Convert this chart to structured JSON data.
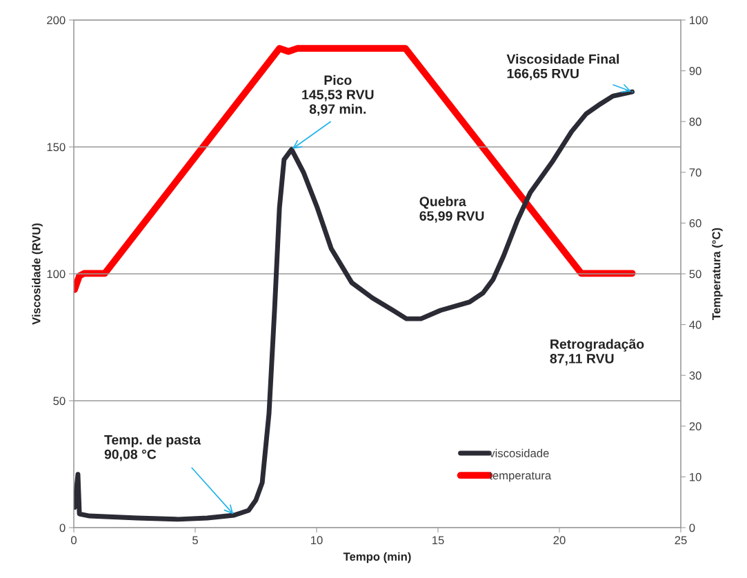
{
  "chart_data": {
    "type": "line",
    "xlabel": "Tempo (min)",
    "ylabel": "Viscosidade (RVU)",
    "y2label": "Temperatura (°C)",
    "series": [
      {
        "name": "viscosidade",
        "color": "#2b2b35",
        "x": [
          0.03,
          0.17,
          0.23,
          0.65,
          2.6,
          4.3,
          5.5,
          6.6,
          7.2,
          7.5,
          7.76,
          8.04,
          8.27,
          8.47,
          8.66,
          8.97,
          9.46,
          10.03,
          10.6,
          11.45,
          12.3,
          13.15,
          13.7,
          14.3,
          15.1,
          16.3,
          16.85,
          17.27,
          17.7,
          18.27,
          18.8,
          19.7,
          20.5,
          21.1,
          21.7,
          22.2,
          23.0
        ],
        "values": [
          8,
          21,
          5.4,
          4.6,
          3.8,
          3.3,
          3.8,
          4.9,
          6.8,
          10.9,
          17.7,
          45,
          86,
          126,
          145,
          149,
          140,
          126,
          110,
          96.5,
          90.5,
          85.6,
          82.3,
          82.3,
          85.6,
          88.9,
          92.4,
          97.8,
          107,
          121,
          132,
          144,
          156,
          163,
          167,
          170,
          171.7
        ]
      },
      {
        "name": "temperatura",
        "color": "#ff0000",
        "axis": "y2",
        "x": [
          0.03,
          0.23,
          0.43,
          1.28,
          8.47,
          8.84,
          9.2,
          13.66,
          20.9,
          23.0
        ],
        "values": [
          46.9,
          49.6,
          50.1,
          50.1,
          94.4,
          93.8,
          94.4,
          94.4,
          50.1,
          50.1
        ]
      }
    ],
    "xlim": [
      0,
      25
    ],
    "xticks": [
      0,
      5,
      10,
      15,
      20,
      25
    ],
    "ylim": [
      0,
      200
    ],
    "yticks": [
      0,
      50,
      100,
      150,
      200
    ],
    "y2lim": [
      0,
      100
    ],
    "y2ticks": [
      0,
      10,
      20,
      30,
      40,
      50,
      60,
      70,
      80,
      90,
      100
    ],
    "grid": "y",
    "legend": "bottom right",
    "marker": "none",
    "line_style": "solid",
    "annotations": [
      {
        "text": "Pico\n145,53 RVU\n8,97 min.",
        "x": 8.97,
        "y": 149
      },
      {
        "text": "Temp. de pasta\n90,08 °C",
        "x": 6.6,
        "y": 5
      },
      {
        "text": "Viscosidade Final\n166,65 RVU",
        "x": 23.0,
        "y": 171.7
      },
      "Quebra\n65,99 RVU",
      "Retrogradação\n87,11 RVU"
    ]
  }
}
